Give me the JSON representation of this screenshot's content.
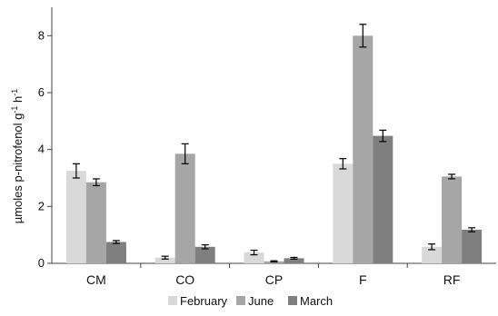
{
  "chart_data": {
    "type": "bar",
    "ylabel_parts": [
      "µmoles p-nitrofenol g",
      "-1",
      " h",
      "-1"
    ],
    "xlabel": "",
    "ylim": [
      0,
      9
    ],
    "yticks": [
      0,
      2,
      4,
      6,
      8
    ],
    "grid": false,
    "legend_position": "bottom",
    "categories": [
      "CM",
      "CO",
      "CP",
      "F",
      "RF"
    ],
    "series": [
      {
        "name": "February",
        "color": "#d9d9d9",
        "values": [
          3.25,
          0.2,
          0.38,
          3.5,
          0.58
        ],
        "errors": [
          0.25,
          0.05,
          0.08,
          0.18,
          0.1
        ]
      },
      {
        "name": "June",
        "color": "#a6a6a6",
        "values": [
          2.85,
          3.85,
          0.07,
          8.0,
          3.05
        ],
        "errors": [
          0.12,
          0.35,
          0.02,
          0.4,
          0.08
        ]
      },
      {
        "name": "March",
        "color": "#7f7f7f",
        "values": [
          0.75,
          0.58,
          0.18,
          4.48,
          1.18
        ],
        "errors": [
          0.05,
          0.07,
          0.03,
          0.2,
          0.07
        ]
      }
    ]
  }
}
